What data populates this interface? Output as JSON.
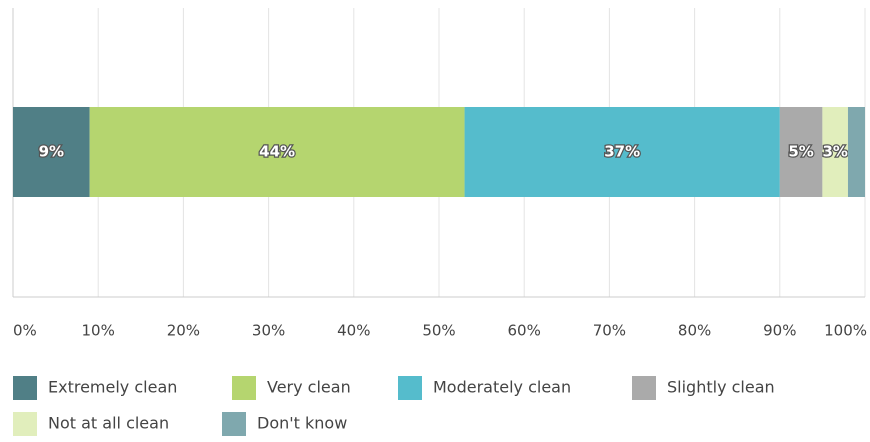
{
  "chart_data": {
    "type": "stacked-bar-horizontal",
    "categories": [
      null
    ],
    "series": [
      {
        "name": "Extremely clean",
        "color": "#507f86",
        "values": [
          9
        ],
        "value_labels": [
          "9%"
        ]
      },
      {
        "name": "Very clean",
        "color": "#b5d56f",
        "values": [
          44
        ],
        "value_labels": [
          "44%"
        ]
      },
      {
        "name": "Moderately clean",
        "color": "#55bccc",
        "values": [
          37
        ],
        "value_labels": [
          "37%"
        ]
      },
      {
        "name": "Slightly clean",
        "color": "#aaaaaa",
        "values": [
          5
        ],
        "value_labels": [
          "5%"
        ]
      },
      {
        "name": "Not at all clean",
        "color": "#e1eebc",
        "values": [
          3
        ],
        "value_labels": [
          "3%"
        ]
      },
      {
        "name": "Don't know",
        "color": "#7fa8ae",
        "values": [
          2
        ]
      }
    ],
    "xlim": [
      0,
      100
    ],
    "xticks": [
      {
        "value": 0,
        "label": "0%"
      },
      {
        "value": 10,
        "label": "10%"
      },
      {
        "value": 20,
        "label": "20%"
      },
      {
        "value": 30,
        "label": "30%"
      },
      {
        "value": 40,
        "label": "40%"
      },
      {
        "value": 50,
        "label": "50%"
      },
      {
        "value": 60,
        "label": "60%"
      },
      {
        "value": 70,
        "label": "70%"
      },
      {
        "value": 80,
        "label": "80%"
      },
      {
        "value": 90,
        "label": "90%"
      },
      {
        "value": 100,
        "label": "100%"
      }
    ],
    "grid": true,
    "legend": "bottom"
  }
}
